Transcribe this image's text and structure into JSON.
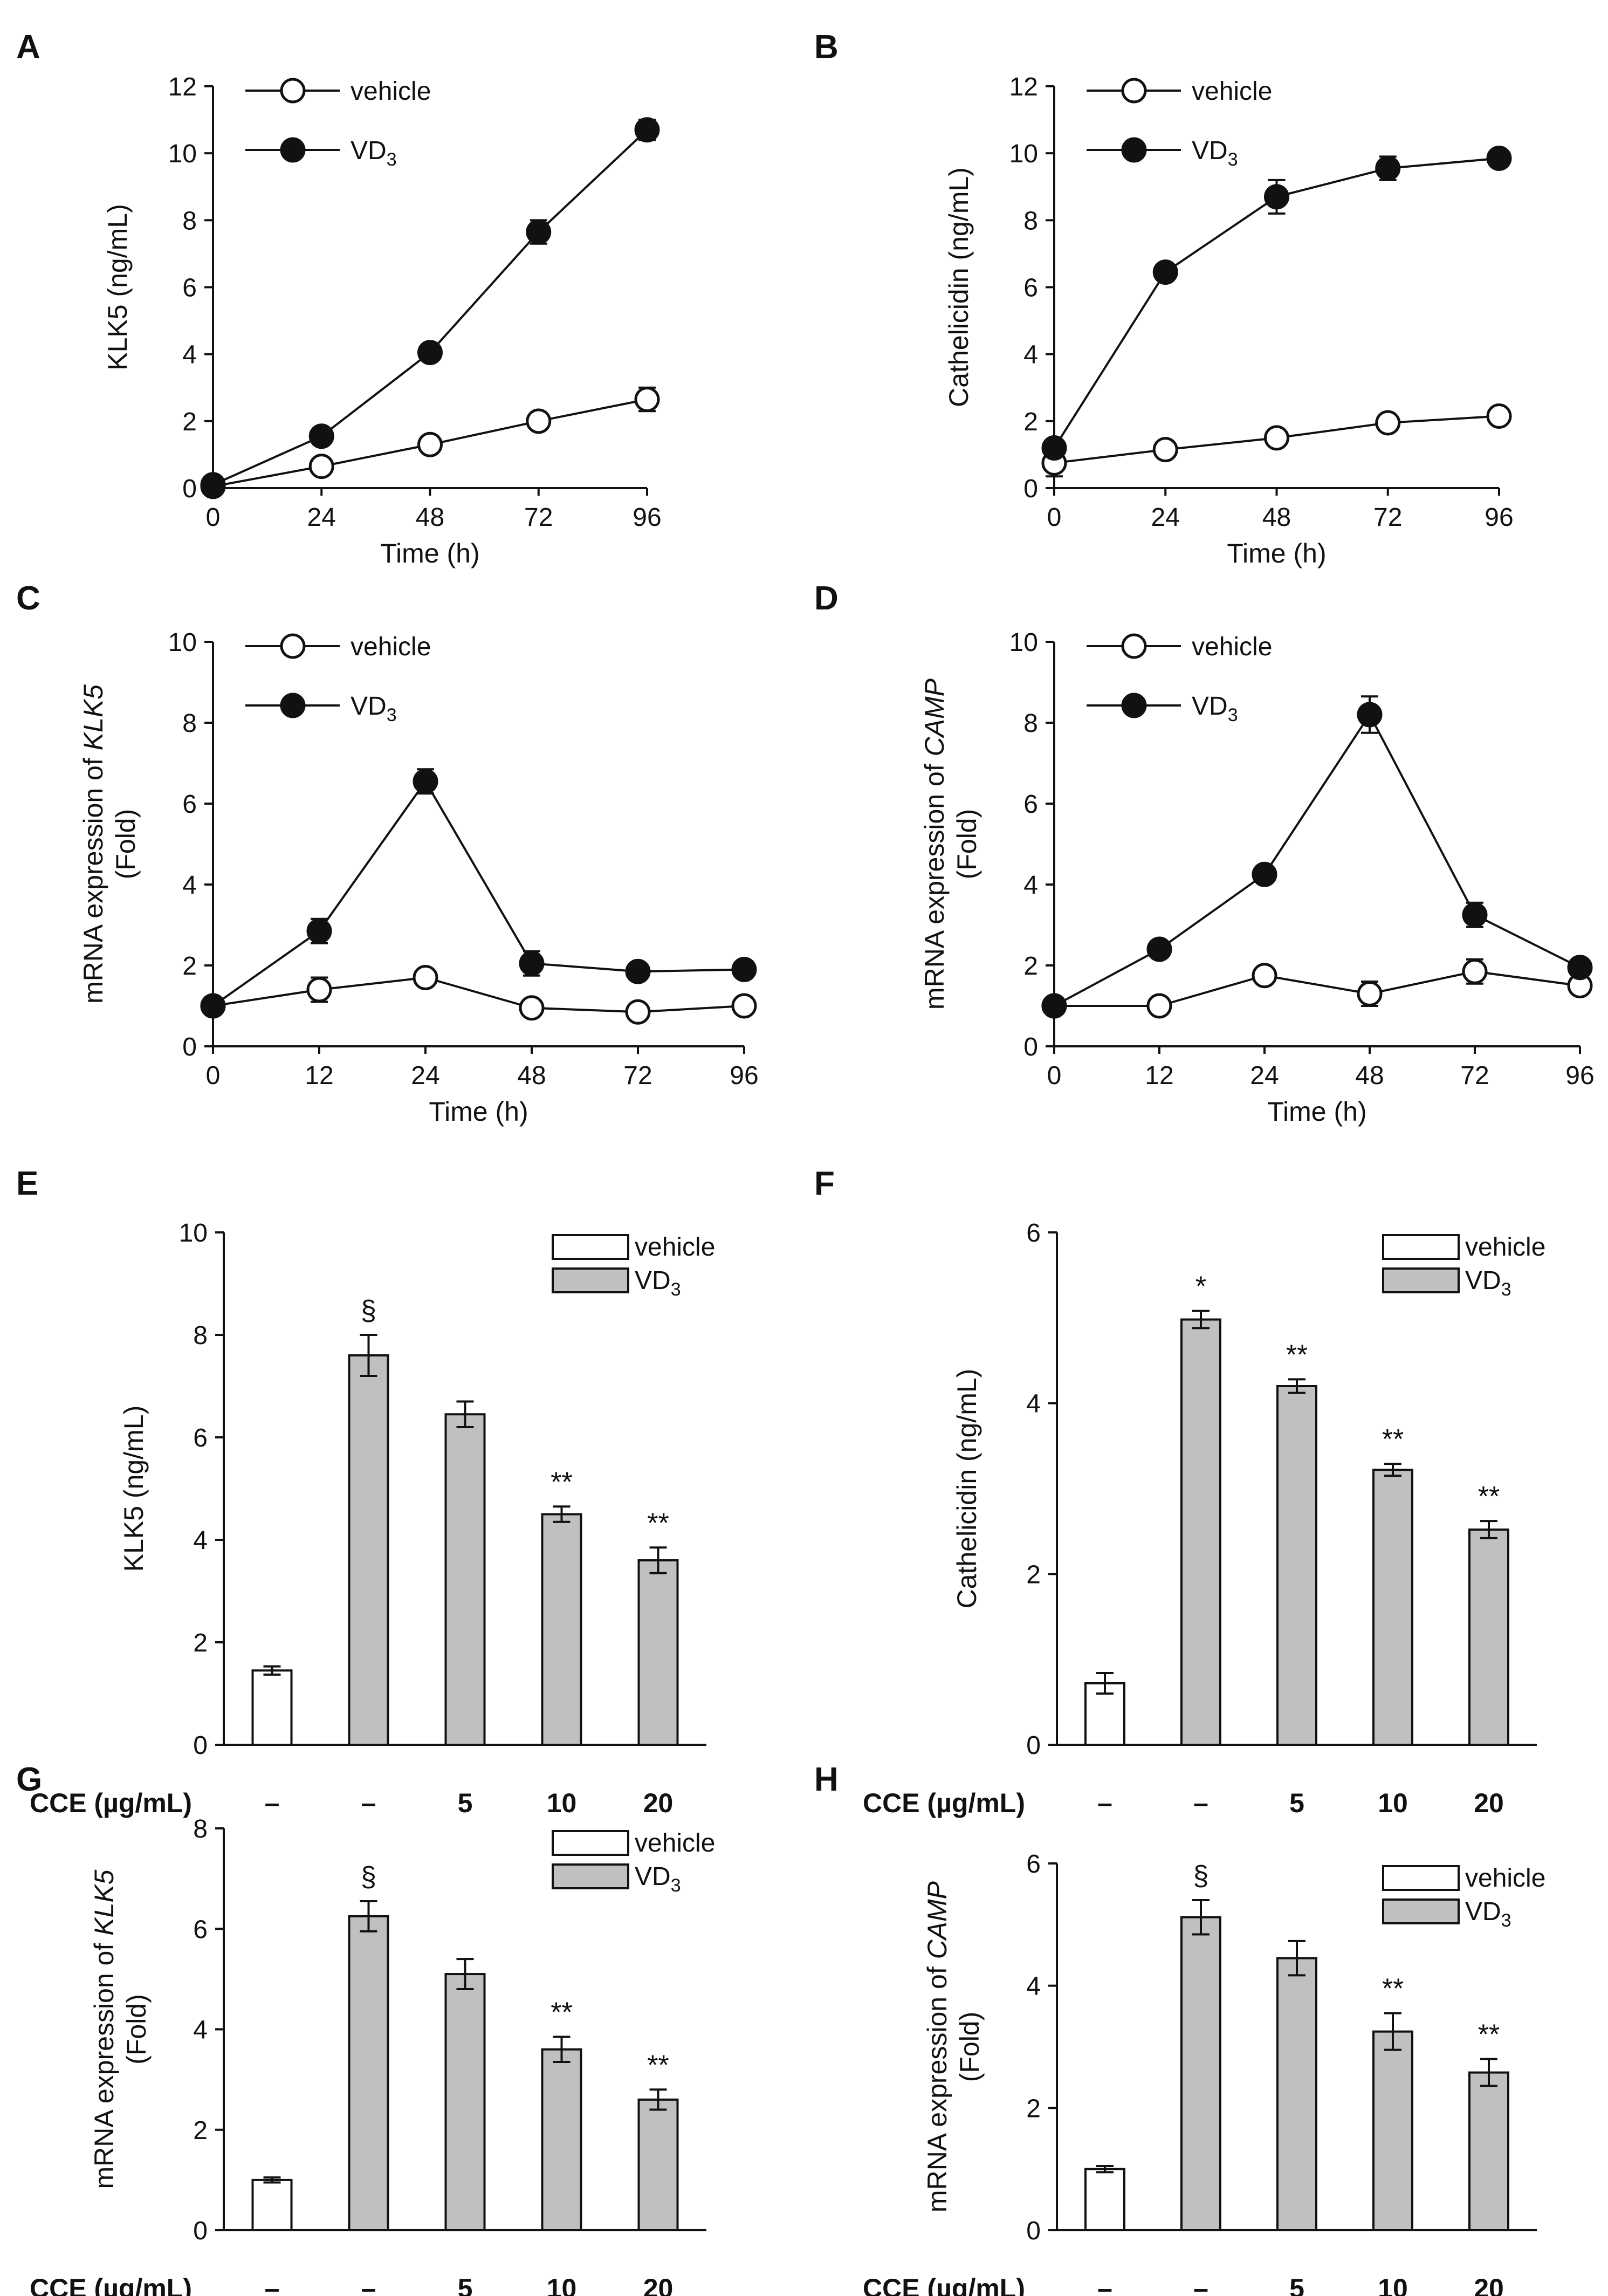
{
  "chart_data": [
    {
      "panel": "A",
      "type": "line",
      "ylabel": [
        "KLK5 (ng/mL)"
      ],
      "xlabel": "Time (h)",
      "x": [
        0,
        24,
        48,
        72,
        96
      ],
      "x_ticks": [
        "0",
        "24",
        "48",
        "72",
        "96"
      ],
      "ylim": [
        0,
        12
      ],
      "y_ticks": [
        "0",
        "2",
        "4",
        "6",
        "8",
        "10",
        "12"
      ],
      "legend": [
        "vehicle",
        "VD3"
      ],
      "series": [
        {
          "name": "vehicle",
          "values": [
            0.05,
            0.65,
            1.3,
            2.0,
            2.65
          ],
          "err": [
            0.05,
            0.1,
            0.1,
            0.2,
            0.35
          ]
        },
        {
          "name": "VD3",
          "values": [
            0.1,
            1.55,
            4.05,
            7.65,
            10.7
          ],
          "err": [
            0.05,
            0.1,
            0.1,
            0.35,
            0.3
          ]
        }
      ]
    },
    {
      "panel": "B",
      "type": "line",
      "ylabel": [
        "Cathelicidin (ng/mL)"
      ],
      "xlabel": "Time (h)",
      "x": [
        0,
        24,
        48,
        72,
        96
      ],
      "x_ticks": [
        "0",
        "24",
        "48",
        "72",
        "96"
      ],
      "ylim": [
        0,
        12
      ],
      "y_ticks": [
        "0",
        "2",
        "4",
        "6",
        "8",
        "10",
        "12"
      ],
      "legend": [
        "vehicle",
        "VD3"
      ],
      "series": [
        {
          "name": "vehicle",
          "values": [
            0.75,
            1.15,
            1.5,
            1.95,
            2.15
          ],
          "err": [
            0.4,
            0.1,
            0.1,
            0.15,
            0.15
          ]
        },
        {
          "name": "VD3",
          "values": [
            1.2,
            6.45,
            8.7,
            9.55,
            9.85
          ],
          "err": [
            0.15,
            0.2,
            0.5,
            0.35,
            0.1
          ]
        }
      ]
    },
    {
      "panel": "C",
      "type": "line",
      "ylabel": [
        "mRNA expression of KLK5",
        "(Fold)"
      ],
      "xlabel": "Time (h)",
      "x": [
        0,
        12,
        24,
        48,
        72,
        96
      ],
      "x_ticks": [
        "0",
        "12",
        "24",
        "48",
        "72",
        "96"
      ],
      "ylim": [
        0,
        10
      ],
      "y_ticks": [
        "0",
        "2",
        "4",
        "6",
        "8",
        "10"
      ],
      "legend": [
        "vehicle",
        "VD3"
      ],
      "series": [
        {
          "name": "vehicle",
          "values": [
            1.0,
            1.4,
            1.7,
            0.95,
            0.85,
            1.0
          ],
          "err": [
            0.05,
            0.3,
            0.2,
            0.15,
            0.15,
            0.15
          ]
        },
        {
          "name": "VD3",
          "values": [
            1.0,
            2.85,
            6.55,
            2.05,
            1.85,
            1.9
          ],
          "err": [
            0.05,
            0.3,
            0.3,
            0.3,
            0.1,
            0.1
          ]
        }
      ]
    },
    {
      "panel": "D",
      "type": "line",
      "ylabel": [
        "mRNA expression of CAMP",
        "(Fold)"
      ],
      "xlabel": "Time (h)",
      "x": [
        0,
        12,
        24,
        48,
        72,
        96
      ],
      "x_ticks": [
        "0",
        "12",
        "24",
        "48",
        "72",
        "96"
      ],
      "ylim": [
        0,
        10
      ],
      "y_ticks": [
        "0",
        "2",
        "4",
        "6",
        "8",
        "10"
      ],
      "legend": [
        "vehicle",
        "VD3"
      ],
      "series": [
        {
          "name": "vehicle",
          "values": [
            1.0,
            1.0,
            1.75,
            1.3,
            1.85,
            1.5
          ],
          "err": [
            0.05,
            0.1,
            0.2,
            0.3,
            0.3,
            0.1
          ]
        },
        {
          "name": "VD3",
          "values": [
            1.0,
            2.4,
            4.25,
            8.2,
            3.25,
            1.95
          ],
          "err": [
            0.05,
            0.2,
            0.2,
            0.45,
            0.3,
            0.1
          ]
        }
      ]
    },
    {
      "panel": "E",
      "type": "bar",
      "ylabel": [
        "KLK5 (ng/mL)"
      ],
      "cce_label": "CCE (µg/mL)",
      "categories": [
        "–",
        "–",
        "5",
        "10",
        "20"
      ],
      "ylim": [
        0,
        10
      ],
      "y_ticks": [
        "0",
        "2",
        "4",
        "6",
        "8",
        "10"
      ],
      "legend": [
        "vehicle",
        "VD3"
      ],
      "bar_series": [
        "vehicle",
        "VD3",
        "VD3",
        "VD3",
        "VD3"
      ],
      "values": [
        1.45,
        7.6,
        6.45,
        4.5,
        3.6
      ],
      "err": [
        0.08,
        0.4,
        0.25,
        0.15,
        0.25
      ],
      "marks": [
        "",
        "§",
        "",
        "**",
        "**"
      ]
    },
    {
      "panel": "F",
      "type": "bar",
      "ylabel": [
        "Cathelicidin (ng/mL)"
      ],
      "cce_label": "CCE (µg/mL)",
      "categories": [
        "–",
        "–",
        "5",
        "10",
        "20"
      ],
      "ylim": [
        0,
        6
      ],
      "y_ticks": [
        "0",
        "2",
        "4",
        "6"
      ],
      "legend": [
        "vehicle",
        "VD3"
      ],
      "bar_series": [
        "vehicle",
        "VD3",
        "VD3",
        "VD3",
        "VD3"
      ],
      "values": [
        0.72,
        4.98,
        4.2,
        3.22,
        2.52
      ],
      "err": [
        0.12,
        0.1,
        0.08,
        0.07,
        0.1
      ],
      "marks": [
        "",
        "*",
        "**",
        "**",
        "**"
      ]
    },
    {
      "panel": "G",
      "type": "bar",
      "ylabel": [
        "mRNA expression of KLK5",
        "(Fold)"
      ],
      "cce_label": "CCE (µg/mL)",
      "categories": [
        "–",
        "–",
        "5",
        "10",
        "20"
      ],
      "ylim": [
        0,
        8
      ],
      "y_ticks": [
        "0",
        "2",
        "4",
        "6",
        "8"
      ],
      "legend": [
        "vehicle",
        "VD3"
      ],
      "bar_series": [
        "vehicle",
        "VD3",
        "VD3",
        "VD3",
        "VD3"
      ],
      "values": [
        1.0,
        6.25,
        5.1,
        3.6,
        2.6
      ],
      "err": [
        0.05,
        0.3,
        0.3,
        0.25,
        0.2
      ],
      "marks": [
        "",
        "§",
        "",
        "**",
        "**"
      ]
    },
    {
      "panel": "H",
      "type": "bar",
      "ylabel": [
        "mRNA expression of CAMP",
        "(Fold)"
      ],
      "cce_label": "CCE (µg/mL)",
      "categories": [
        "–",
        "–",
        "5",
        "10",
        "20"
      ],
      "ylim": [
        0,
        6
      ],
      "y_ticks": [
        "0",
        "2",
        "4",
        "6"
      ],
      "legend": [
        "vehicle",
        "VD3"
      ],
      "bar_series": [
        "vehicle",
        "VD3",
        "VD3",
        "VD3",
        "VD3"
      ],
      "values": [
        1.0,
        5.12,
        4.45,
        3.25,
        2.58
      ],
      "err": [
        0.05,
        0.28,
        0.28,
        0.3,
        0.22
      ],
      "marks": [
        "",
        "§",
        "",
        "**",
        "**"
      ]
    }
  ],
  "colors": {
    "vd3_bar": "#c0c0c0",
    "vehicle_bar": "#ffffff",
    "ink": "#111111"
  }
}
